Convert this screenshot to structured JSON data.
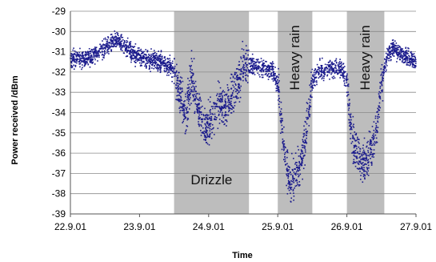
{
  "chart_data": {
    "type": "scatter",
    "title": "",
    "xlabel": "Time",
    "ylabel": "Power received /dBm",
    "xlim": [
      "2001-09-22",
      "2001-09-27"
    ],
    "ylim": [
      -39,
      -29
    ],
    "x_ticks": [
      "22.9.01",
      "23.9.01",
      "24.9.01",
      "25.9.01",
      "26.9.01",
      "27.9.01"
    ],
    "y_ticks": [
      "-29",
      "-30",
      "-31",
      "-32",
      "-33",
      "-34",
      "-35",
      "-36",
      "-37",
      "-38",
      "-39"
    ],
    "grid": "horizontal",
    "colors": {
      "points": "#1a1a8c",
      "bands": "#bdbdbd"
    },
    "shaded_periods": [
      {
        "label": "Drizzle",
        "start": "2001-09-23 12:00",
        "end": "2001-09-24 14:00"
      },
      {
        "label": "Heavy rain",
        "start": "2001-09-25 00:00",
        "end": "2001-09-25 12:00"
      },
      {
        "label": "Heavy rain",
        "start": "2001-09-26 00:00",
        "end": "2001-09-26 13:00"
      }
    ],
    "series": [
      {
        "values_note_points": [
          [
            "2001-09-22 00:00",
            -31.3
          ],
          [
            "2001-09-22 04:00",
            -31.4
          ],
          [
            "2001-09-22 08:00",
            -31.2
          ],
          [
            "2001-09-22 12:00",
            -30.8
          ],
          [
            "2001-09-22 16:00",
            -30.4
          ],
          [
            "2001-09-22 20:00",
            -30.9
          ],
          [
            "2001-09-23 00:00",
            -31.3
          ],
          [
            "2001-09-23 04:00",
            -31.4
          ],
          [
            "2001-09-23 08:00",
            -31.5
          ],
          [
            "2001-09-23 12:00",
            -32.0
          ],
          [
            "2001-09-23 14:00",
            -33.0
          ],
          [
            "2001-09-23 16:00",
            -34.2
          ],
          [
            "2001-09-23 18:00",
            -32.2
          ],
          [
            "2001-09-23 20:00",
            -33.5
          ],
          [
            "2001-09-23 22:00",
            -34.6
          ],
          [
            "2001-09-24 00:00",
            -34.6
          ],
          [
            "2001-09-24 02:00",
            -34.0
          ],
          [
            "2001-09-24 04:00",
            -33.5
          ],
          [
            "2001-09-24 06:00",
            -33.8
          ],
          [
            "2001-09-24 08:00",
            -33.3
          ],
          [
            "2001-09-24 10:00",
            -32.6
          ],
          [
            "2001-09-24 12:00",
            -31.8
          ],
          [
            "2001-09-24 14:00",
            -31.6
          ],
          [
            "2001-09-24 18:00",
            -31.8
          ],
          [
            "2001-09-24 22:00",
            -31.9
          ],
          [
            "2001-09-25 00:00",
            -32.5
          ],
          [
            "2001-09-25 02:00",
            -35.5
          ],
          [
            "2001-09-25 04:00",
            -37.5
          ],
          [
            "2001-09-25 06:00",
            -37.2
          ],
          [
            "2001-09-25 08:00",
            -36.5
          ],
          [
            "2001-09-25 10:00",
            -35.0
          ],
          [
            "2001-09-25 12:00",
            -32.5
          ],
          [
            "2001-09-25 14:00",
            -32.0
          ],
          [
            "2001-09-25 18:00",
            -31.8
          ],
          [
            "2001-09-25 22:00",
            -31.8
          ],
          [
            "2001-09-26 00:00",
            -32.5
          ],
          [
            "2001-09-26 02:00",
            -35.5
          ],
          [
            "2001-09-26 04:00",
            -36.0
          ],
          [
            "2001-09-26 06:00",
            -36.5
          ],
          [
            "2001-09-26 08:00",
            -36.0
          ],
          [
            "2001-09-26 10:00",
            -35.0
          ],
          [
            "2001-09-26 12:00",
            -32.5
          ],
          [
            "2001-09-26 14:00",
            -31.2
          ],
          [
            "2001-09-26 16:00",
            -30.8
          ],
          [
            "2001-09-26 18:00",
            -31.0
          ],
          [
            "2001-09-26 20:00",
            -31.2
          ],
          [
            "2001-09-26 22:00",
            -31.4
          ],
          [
            "2001-09-27 00:00",
            -31.5
          ]
        ]
      }
    ]
  }
}
